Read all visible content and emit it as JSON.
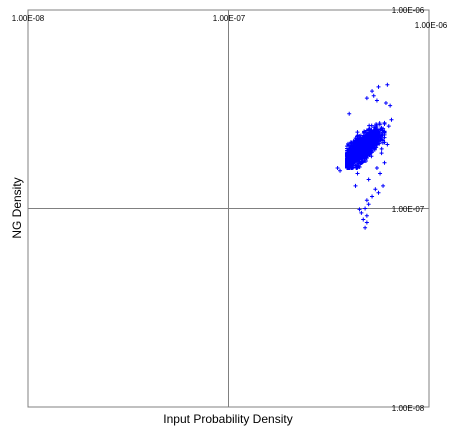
{
  "chart_data": {
    "type": "scatter",
    "xlabel": "Input Probability Density",
    "ylabel": "NG Density",
    "x_scale": "log",
    "y_scale": "log",
    "xlim": [
      1e-08,
      1e-06
    ],
    "ylim": [
      1e-08,
      1e-06
    ],
    "x_ticks": [
      "1.00E-08",
      "1.00E-07",
      "1.00E-06"
    ],
    "y_ticks": [
      "1.00E-08",
      "1.00E-07",
      "1.00E-06"
    ],
    "grid": true,
    "marker": "plus",
    "series": [
      {
        "color": "#0000ff",
        "cluster": {
          "x_range": [
            3.9e-07,
            6e-07
          ],
          "y_range": [
            1.6e-07,
            3.3e-07
          ],
          "core": [
            4.6e-07,
            2e-07
          ]
        },
        "points": [
          [
            6.2e-07,
            4.2e-07
          ],
          [
            5.6e-07,
            4.1e-07
          ],
          [
            5.2e-07,
            3.9e-07
          ],
          [
            4.9e-07,
            3.6e-07
          ],
          [
            5.5e-07,
            3.5e-07
          ],
          [
            6.1e-07,
            3.4e-07
          ],
          [
            6.4e-07,
            3.3e-07
          ],
          [
            6.5e-07,
            2.8e-07
          ],
          [
            6.3e-07,
            2.6e-07
          ],
          [
            6e-07,
            2.4e-07
          ],
          [
            5.9e-07,
            2.2e-07
          ],
          [
            6.2e-07,
            2.1e-07
          ],
          [
            4e-07,
            3e-07
          ],
          [
            5.3e-07,
            3.7e-07
          ],
          [
            5.8e-07,
            1.9e-07
          ],
          [
            6e-07,
            1.7e-07
          ],
          [
            5.7e-07,
            1.5e-07
          ],
          [
            5.9e-07,
            1.3e-07
          ],
          [
            5.6e-07,
            1.2e-07
          ],
          [
            5.4e-07,
            1.25e-07
          ],
          [
            5.2e-07,
            1.15e-07
          ],
          [
            5e-07,
            1.05e-07
          ],
          [
            4.9e-07,
            1.1e-07
          ],
          [
            4.8e-07,
            1e-07
          ],
          [
            4.6e-07,
            9.5e-08
          ],
          [
            4.9e-07,
            9.2e-08
          ],
          [
            4.7e-07,
            8.8e-08
          ],
          [
            4.9e-07,
            8.5e-08
          ],
          [
            4.8e-07,
            8e-08
          ],
          [
            4.5e-07,
            9.9e-08
          ],
          [
            4.3e-07,
            1.3e-07
          ],
          [
            5e-07,
            1.4e-07
          ],
          [
            4.4e-07,
            1.5e-07
          ],
          [
            5.5e-07,
            1.6e-07
          ],
          [
            3.6e-07,
            1.55e-07
          ],
          [
            3.5e-07,
            1.6e-07
          ]
        ]
      }
    ]
  }
}
